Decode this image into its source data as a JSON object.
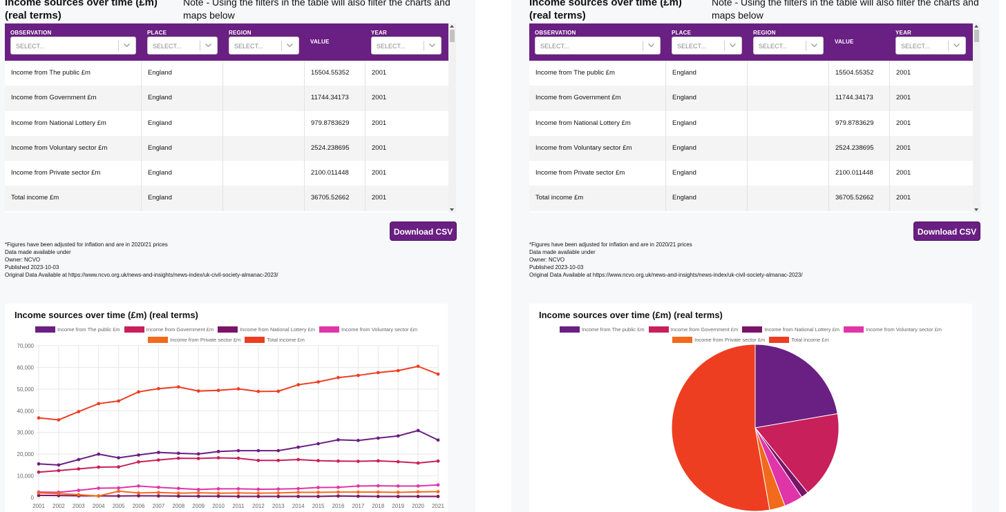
{
  "panels": [
    {
      "title": "Income sources over time (£m) (real terms)",
      "note": "Note - Using the filters in the table will also filter the charts and maps below",
      "table": {
        "columns": [
          {
            "label": "OBSERVATION",
            "placeholder": "SELECT..."
          },
          {
            "label": "PLACE",
            "placeholder": "SELECT..."
          },
          {
            "label": "REGION",
            "placeholder": "SELECT..."
          },
          {
            "label": "VALUE",
            "placeholder": ""
          },
          {
            "label": "YEAR",
            "placeholder": "SELECT..."
          }
        ],
        "rows": [
          [
            "Income from The public £m",
            "England",
            "",
            "15504.55352",
            "2001"
          ],
          [
            "Income from Government £m",
            "England",
            "",
            "11744.34173",
            "2001"
          ],
          [
            "Income from National Lottery £m",
            "England",
            "",
            "979.8783629",
            "2001"
          ],
          [
            "Income from Voluntary sector £m",
            "England",
            "",
            "2524.238695",
            "2001"
          ],
          [
            "Income from Private sector £m",
            "England",
            "",
            "2100.011448",
            "2001"
          ],
          [
            "Total income £m",
            "England",
            "",
            "36705.52662",
            "2001"
          ]
        ]
      },
      "download_label": "Download CSV",
      "meta": [
        "*Figures have been adjusted for inflation and are in 2020/21 prices",
        "Data made available under",
        "Owner: NCVO",
        "Published 2023-10-03",
        "Original Data Available at https://www.ncvo.org.uk/news-and-insights/news-index/uk-civil-society-almanac-2023/"
      ],
      "chart_title": "Income sources over time (£m) (real terms)"
    },
    {
      "title": "Income sources over time (£m) (real terms)",
      "note": "Note - Using the filters in the table will also filter the charts and maps below",
      "table": {
        "columns": [
          {
            "label": "OBSERVATION",
            "placeholder": "SELECT..."
          },
          {
            "label": "PLACE",
            "placeholder": "SELECT..."
          },
          {
            "label": "REGION",
            "placeholder": "SELECT..."
          },
          {
            "label": "VALUE",
            "placeholder": ""
          },
          {
            "label": "YEAR",
            "placeholder": "SELECT..."
          }
        ],
        "rows": [
          [
            "Income from The public £m",
            "England",
            "",
            "15504.55352",
            "2001"
          ],
          [
            "Income from Government £m",
            "England",
            "",
            "11744.34173",
            "2001"
          ],
          [
            "Income from National Lottery £m",
            "England",
            "",
            "979.8783629",
            "2001"
          ],
          [
            "Income from Voluntary sector £m",
            "England",
            "",
            "2524.238695",
            "2001"
          ],
          [
            "Income from Private sector £m",
            "England",
            "",
            "2100.011448",
            "2001"
          ],
          [
            "Total income £m",
            "England",
            "",
            "36705.52662",
            "2001"
          ]
        ]
      },
      "download_label": "Download CSV",
      "meta": [
        "*Figures have been adjusted for inflation and are in 2020/21 prices",
        "Data made available under",
        "Owner: NCVO",
        "Published 2023-10-03",
        "Original Data Available at https://www.ncvo.org.uk/news-and-insights/news-index/uk-civil-society-almanac-2023/"
      ],
      "chart_title": "Income sources over time (£m) (real terms)"
    }
  ],
  "colors": {
    "purple": "#6a1f83",
    "crimson": "#c8205a",
    "dark_purple": "#7a1468",
    "magenta": "#e035a8",
    "orange": "#f26a1b",
    "red": "#ee3e22"
  },
  "chart_data": [
    {
      "type": "line",
      "title": "Income sources over time (£m) (real terms)",
      "x": [
        "2001",
        "2002",
        "2003",
        "2004",
        "2005",
        "2006",
        "2007",
        "2008",
        "2009",
        "2010",
        "2011",
        "2012",
        "2013",
        "2014",
        "2015",
        "2016",
        "2017",
        "2018",
        "2019",
        "2020",
        "2021"
      ],
      "ylim": [
        0,
        70000
      ],
      "yticks": [
        "0",
        "10,000",
        "20,000",
        "30,000",
        "40,000",
        "50,000",
        "60,000",
        "70,000"
      ],
      "series": [
        {
          "name": "Income from The public £m",
          "color": "#6a1f83",
          "values": [
            15500,
            15000,
            17500,
            20000,
            18300,
            19600,
            20800,
            20400,
            20100,
            21200,
            21600,
            21600,
            21600,
            23200,
            24800,
            26600,
            26300,
            27400,
            28400,
            30900,
            26500
          ]
        },
        {
          "name": "Income from Government £m",
          "color": "#c8205a",
          "values": [
            11700,
            12400,
            13200,
            14000,
            14100,
            16400,
            17300,
            18100,
            18000,
            18300,
            18100,
            17100,
            17100,
            17500,
            17000,
            16800,
            16700,
            16900,
            16500,
            15900,
            16800
          ]
        },
        {
          "name": "Income from National Lottery £m",
          "color": "#7a1468",
          "values": [
            980,
            900,
            800,
            750,
            700,
            800,
            750,
            650,
            600,
            600,
            500,
            500,
            500,
            500,
            500,
            700,
            600,
            500,
            500,
            500,
            500
          ]
        },
        {
          "name": "Income from Voluntary sector £m",
          "color": "#e035a8",
          "values": [
            2500,
            2400,
            3300,
            4300,
            4400,
            5300,
            4700,
            4200,
            3700,
            4000,
            4000,
            3800,
            3900,
            4100,
            4600,
            4700,
            5300,
            5400,
            5300,
            5300,
            5800
          ]
        },
        {
          "name": "Income from Private sector £m",
          "color": "#f26a1b",
          "values": [
            2100,
            1800,
            1300,
            700,
            2900,
            2100,
            2300,
            2000,
            2200,
            2000,
            2100,
            2000,
            2100,
            2400,
            2400,
            2500,
            2500,
            2500,
            2400,
            2600,
            2700
          ]
        },
        {
          "name": "Total income £m",
          "color": "#ee3e22",
          "values": [
            36700,
            35800,
            39600,
            43300,
            44500,
            48700,
            50200,
            51000,
            49100,
            49400,
            50100,
            48900,
            49000,
            52000,
            53300,
            55300,
            56300,
            57600,
            58500,
            60500,
            56900
          ]
        }
      ]
    },
    {
      "type": "pie",
      "title": "Income sources over time (£m) (real terms)",
      "categories": [
        "Income from The public £m",
        "Income from Government £m",
        "Income from National Lottery £m",
        "Income from Voluntary sector £m",
        "Income from Private sector £m",
        "Total income £m"
      ],
      "values": [
        15504.55352,
        11744.34173,
        979.8783629,
        2524.238695,
        2100.011448,
        36705.52662
      ],
      "colors": [
        "#6a1f83",
        "#c8205a",
        "#7a1468",
        "#e035a8",
        "#f26a1b",
        "#ee3e22"
      ]
    }
  ]
}
